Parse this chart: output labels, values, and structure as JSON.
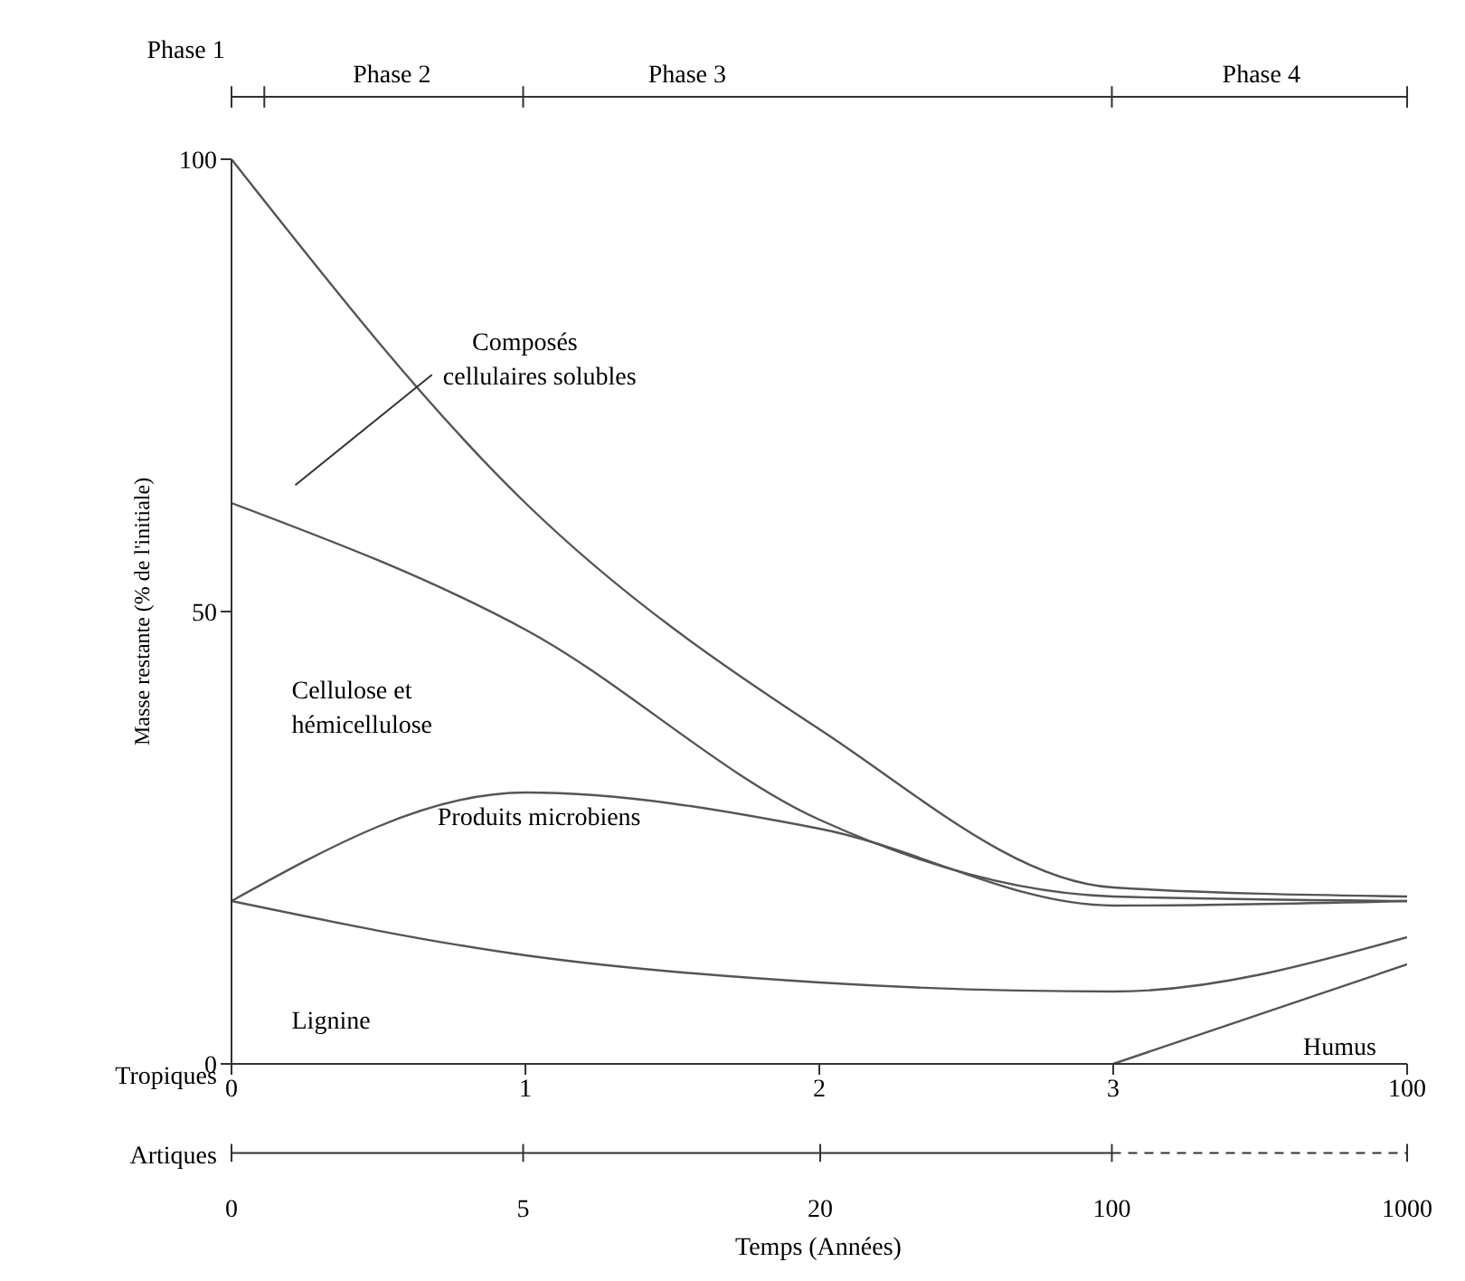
{
  "chart_data": {
    "type": "line",
    "ylabel": "Masse restante (% de l'initiale)",
    "categories": [
      "0",
      "1",
      "2",
      "3",
      "100"
    ],
    "ylim": [
      0,
      100
    ],
    "yticks": [
      0,
      50,
      100
    ],
    "marker": "none",
    "line_style": "solid",
    "series": [
      {
        "color": "#555555",
        "values": [
          100,
          62,
          37,
          19.5,
          18.5
        ]
      },
      {
        "color": "#555555",
        "values": [
          62,
          48,
          27,
          18.5,
          18
        ]
      },
      {
        "color": "#555555",
        "values": [
          18,
          30,
          26,
          17.5,
          18
        ]
      },
      {
        "color": "#555555",
        "values": [
          18,
          12,
          9,
          8,
          14
        ]
      },
      {
        "color": "#555555",
        "values": [
          null,
          null,
          null,
          0,
          11
        ]
      }
    ],
    "annotations": [
      "Composés\ncellulaires solubles",
      "Cellulose et\nhémicellulose",
      "Produits microbiens",
      "Lignine",
      "Humus",
      "Tropiques",
      "Artiques",
      "Phase 1",
      "Phase 2",
      "Phase 3",
      "Phase 4",
      "0",
      "5",
      "20",
      "100",
      "1000",
      "Temps (Années)"
    ]
  }
}
